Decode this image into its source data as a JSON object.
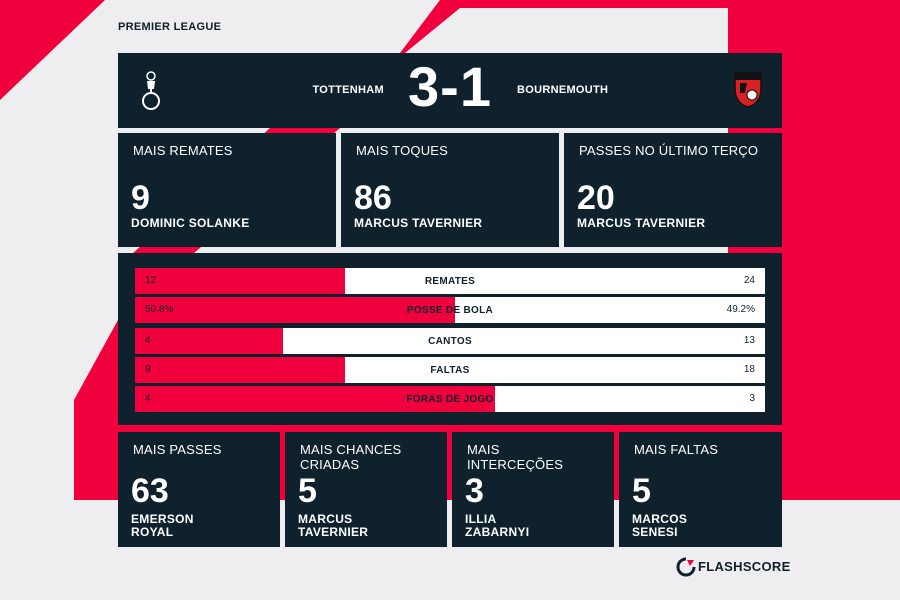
{
  "competition": "PREMIER LEAGUE",
  "match": {
    "home_team": "TOTTENHAM",
    "away_team": "BOURNEMOUTH",
    "score": "3-1"
  },
  "colors": {
    "accent": "#f0003c",
    "panel": "#0f212d",
    "background": "#eeedf0"
  },
  "top_stats": [
    {
      "title": "MAIS REMATES",
      "value": "9",
      "player": "DOMINIC SOLANKE"
    },
    {
      "title": "MAIS TOQUES",
      "value": "86",
      "player": "MARCUS TAVERNIER"
    },
    {
      "title": "PASSES NO ÚLTIMO TERÇO",
      "value": "20",
      "player": "MARCUS TAVERNIER"
    }
  ],
  "comparison": [
    {
      "label": "REMATES",
      "home": "12",
      "away": "24",
      "home_share": 0.333
    },
    {
      "label": "POSSE DE BOLA",
      "home": "50.8%",
      "away": "49.2%",
      "home_share": 0.508
    },
    {
      "label": "CANTOS",
      "home": "4",
      "away": "13",
      "home_share": 0.235
    },
    {
      "label": "FALTAS",
      "home": "9",
      "away": "18",
      "home_share": 0.333
    },
    {
      "label": "FORAS DE JOGO",
      "home": "4",
      "away": "3",
      "home_share": 0.571
    }
  ],
  "bottom_stats": [
    {
      "title": "MAIS PASSES",
      "value": "63",
      "player": "EMERSON ROYAL"
    },
    {
      "title": "MAIS CHANCES CRIADAS",
      "value": "5",
      "player": "MARCUS TAVERNIER"
    },
    {
      "title": "MAIS INTERCEÇÕES",
      "value": "3",
      "player": "ILLIA ZABARNYI"
    },
    {
      "title": "MAIS FALTAS",
      "value": "5",
      "player": "MARCOS SENESI"
    }
  ],
  "brand": "FLASHSCORE"
}
